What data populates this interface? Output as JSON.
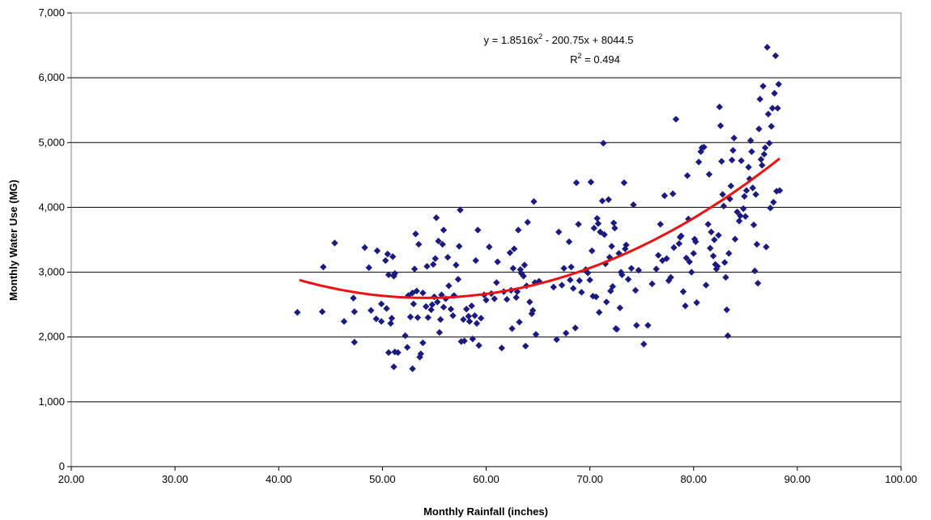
{
  "chart_data": {
    "type": "scatter",
    "title": "",
    "xlabel": "Monthly Rainfall (inches)",
    "ylabel": "Monthly Water Use (MG)",
    "xlim": [
      20,
      100
    ],
    "ylim": [
      0,
      7000
    ],
    "xticks": [
      20,
      30,
      40,
      50,
      60,
      70,
      80,
      90,
      100
    ],
    "xtick_labels": [
      "20.00",
      "30.00",
      "40.00",
      "50.00",
      "60.00",
      "70.00",
      "80.00",
      "90.00",
      "100.00"
    ],
    "yticks": [
      0,
      1000,
      2000,
      3000,
      4000,
      5000,
      6000,
      7000
    ],
    "ytick_labels": [
      "0",
      "1,000",
      "2,000",
      "3,000",
      "4,000",
      "5,000",
      "6,000",
      "7,000"
    ],
    "grid": {
      "horizontal": true,
      "vertical": false
    },
    "legend": "none",
    "colors": {
      "points": "#1a1a80",
      "trendline": "#ee1111",
      "grid": "#000000"
    },
    "trendline": {
      "type": "polynomial",
      "coefficients": [
        1.8516,
        -200.75,
        8044.5
      ],
      "x_range": [
        42,
        88.3
      ],
      "equation_prefix": "y = 1.8516x",
      "equation_sup": "2",
      "equation_suffix": " - 200.75x + 8044.5",
      "r2_prefix": "R",
      "r2_sup": "2",
      "r2_suffix": " = 0.494"
    },
    "series": [
      {
        "points": [
          [
            41.8,
            2380
          ],
          [
            44.2,
            2390
          ],
          [
            44.3,
            3080
          ],
          [
            45.4,
            3450
          ],
          [
            46.3,
            2240
          ],
          [
            47.3,
            2390
          ],
          [
            47.2,
            2600
          ],
          [
            47.3,
            1920
          ],
          [
            48.3,
            3380
          ],
          [
            48.7,
            3070
          ],
          [
            48.9,
            2410
          ],
          [
            49.4,
            2280
          ],
          [
            49.5,
            3330
          ],
          [
            49.9,
            2510
          ],
          [
            49.9,
            2240
          ],
          [
            50.3,
            3180
          ],
          [
            50.5,
            3280
          ],
          [
            50.6,
            2960
          ],
          [
            50.4,
            2440
          ],
          [
            50.6,
            1760
          ],
          [
            50.8,
            2210
          ],
          [
            50.9,
            2290
          ],
          [
            51.0,
            3240
          ],
          [
            51.1,
            2940
          ],
          [
            51.2,
            2980
          ],
          [
            51.1,
            1540
          ],
          [
            51.2,
            1770
          ],
          [
            51.5,
            1760
          ],
          [
            52.2,
            2020
          ],
          [
            52.4,
            1840
          ],
          [
            52.5,
            2640
          ],
          [
            52.7,
            2310
          ],
          [
            52.9,
            2680
          ],
          [
            52.9,
            1510
          ],
          [
            53.0,
            2510
          ],
          [
            53.1,
            3050
          ],
          [
            53.2,
            3590
          ],
          [
            53.3,
            2710
          ],
          [
            53.4,
            2300
          ],
          [
            53.5,
            3430
          ],
          [
            53.6,
            1690
          ],
          [
            53.7,
            1740
          ],
          [
            53.9,
            2680
          ],
          [
            53.9,
            1910
          ],
          [
            54.2,
            2470
          ],
          [
            54.3,
            3090
          ],
          [
            54.4,
            2300
          ],
          [
            54.7,
            2420
          ],
          [
            54.8,
            2500
          ],
          [
            54.9,
            3120
          ],
          [
            55.0,
            2620
          ],
          [
            55.1,
            3210
          ],
          [
            55.2,
            3840
          ],
          [
            55.3,
            2540
          ],
          [
            55.4,
            3480
          ],
          [
            55.5,
            2070
          ],
          [
            55.6,
            2270
          ],
          [
            55.7,
            2650
          ],
          [
            55.8,
            3430
          ],
          [
            55.9,
            2460
          ],
          [
            55.9,
            3650
          ],
          [
            56.1,
            2590
          ],
          [
            56.3,
            3230
          ],
          [
            56.4,
            2790
          ],
          [
            56.6,
            2430
          ],
          [
            56.8,
            2330
          ],
          [
            56.9,
            2640
          ],
          [
            57.1,
            3110
          ],
          [
            57.3,
            2890
          ],
          [
            57.4,
            3400
          ],
          [
            57.5,
            3960
          ],
          [
            57.6,
            1930
          ],
          [
            57.8,
            2270
          ],
          [
            57.9,
            1940
          ],
          [
            58.1,
            2430
          ],
          [
            58.3,
            2320
          ],
          [
            58.4,
            2240
          ],
          [
            58.6,
            2480
          ],
          [
            58.7,
            1970
          ],
          [
            58.9,
            2330
          ],
          [
            59.0,
            3180
          ],
          [
            59.1,
            2210
          ],
          [
            59.2,
            3650
          ],
          [
            59.3,
            1870
          ],
          [
            59.5,
            2290
          ],
          [
            59.8,
            2650
          ],
          [
            60.0,
            2570
          ],
          [
            60.3,
            3390
          ],
          [
            60.5,
            2670
          ],
          [
            60.8,
            2590
          ],
          [
            61.0,
            2840
          ],
          [
            61.1,
            3160
          ],
          [
            61.5,
            1830
          ],
          [
            61.7,
            2700
          ],
          [
            62.0,
            2580
          ],
          [
            62.3,
            3300
          ],
          [
            62.4,
            2720
          ],
          [
            62.5,
            2130
          ],
          [
            62.6,
            3060
          ],
          [
            62.7,
            3360
          ],
          [
            62.9,
            2610
          ],
          [
            63.0,
            2700
          ],
          [
            63.1,
            3650
          ],
          [
            63.2,
            2230
          ],
          [
            63.3,
            3040
          ],
          [
            63.4,
            2980
          ],
          [
            63.6,
            2940
          ],
          [
            63.7,
            3110
          ],
          [
            63.8,
            1860
          ],
          [
            63.9,
            2790
          ],
          [
            64.0,
            3770
          ],
          [
            64.2,
            2540
          ],
          [
            64.4,
            2360
          ],
          [
            64.5,
            2410
          ],
          [
            64.6,
            4090
          ],
          [
            64.7,
            2840
          ],
          [
            64.8,
            2040
          ],
          [
            65.1,
            2860
          ],
          [
            66.5,
            2770
          ],
          [
            66.8,
            1960
          ],
          [
            67.0,
            3620
          ],
          [
            67.3,
            2800
          ],
          [
            67.5,
            3060
          ],
          [
            67.7,
            2060
          ],
          [
            68.0,
            3470
          ],
          [
            68.1,
            2880
          ],
          [
            68.2,
            3080
          ],
          [
            68.4,
            2750
          ],
          [
            68.6,
            2140
          ],
          [
            68.7,
            4380
          ],
          [
            68.9,
            3740
          ],
          [
            69.0,
            2870
          ],
          [
            69.2,
            2690
          ],
          [
            69.6,
            3040
          ],
          [
            69.8,
            2990
          ],
          [
            70.0,
            2880
          ],
          [
            70.1,
            4390
          ],
          [
            70.2,
            3330
          ],
          [
            70.3,
            2630
          ],
          [
            70.4,
            3680
          ],
          [
            70.6,
            2620
          ],
          [
            70.7,
            3830
          ],
          [
            70.8,
            3750
          ],
          [
            70.9,
            2380
          ],
          [
            71.0,
            3620
          ],
          [
            71.2,
            4100
          ],
          [
            71.3,
            4990
          ],
          [
            71.4,
            3580
          ],
          [
            71.5,
            3130
          ],
          [
            71.6,
            2540
          ],
          [
            71.8,
            4120
          ],
          [
            71.9,
            3230
          ],
          [
            72.0,
            2710
          ],
          [
            72.1,
            3400
          ],
          [
            72.2,
            2780
          ],
          [
            72.3,
            3760
          ],
          [
            72.4,
            3680
          ],
          [
            72.5,
            2130
          ],
          [
            72.6,
            2120
          ],
          [
            72.8,
            3290
          ],
          [
            72.9,
            2450
          ],
          [
            73.0,
            3000
          ],
          [
            73.1,
            2960
          ],
          [
            73.3,
            4380
          ],
          [
            73.4,
            3360
          ],
          [
            73.5,
            3420
          ],
          [
            73.7,
            2890
          ],
          [
            74.0,
            3060
          ],
          [
            74.2,
            4040
          ],
          [
            74.4,
            2720
          ],
          [
            74.5,
            2180
          ],
          [
            74.7,
            3030
          ],
          [
            75.2,
            1890
          ],
          [
            75.6,
            2180
          ],
          [
            76.0,
            2820
          ],
          [
            76.4,
            3050
          ],
          [
            76.6,
            3260
          ],
          [
            76.8,
            3740
          ],
          [
            77.0,
            3180
          ],
          [
            77.2,
            4180
          ],
          [
            77.4,
            3210
          ],
          [
            77.6,
            2870
          ],
          [
            77.8,
            2920
          ],
          [
            78.0,
            4210
          ],
          [
            78.1,
            3380
          ],
          [
            78.3,
            5360
          ],
          [
            78.6,
            3440
          ],
          [
            78.7,
            3540
          ],
          [
            78.8,
            3560
          ],
          [
            79.0,
            2700
          ],
          [
            79.2,
            2480
          ],
          [
            79.3,
            3220
          ],
          [
            79.4,
            4490
          ],
          [
            79.5,
            3820
          ],
          [
            79.6,
            3160
          ],
          [
            79.8,
            3000
          ],
          [
            80.0,
            3290
          ],
          [
            80.1,
            3510
          ],
          [
            80.2,
            3470
          ],
          [
            80.3,
            2530
          ],
          [
            80.5,
            4700
          ],
          [
            80.7,
            4860
          ],
          [
            80.8,
            4920
          ],
          [
            81.0,
            4930
          ],
          [
            81.2,
            2800
          ],
          [
            81.4,
            3740
          ],
          [
            81.5,
            4510
          ],
          [
            81.6,
            3370
          ],
          [
            81.7,
            3620
          ],
          [
            81.9,
            3250
          ],
          [
            82.0,
            3500
          ],
          [
            82.1,
            3120
          ],
          [
            82.2,
            3050
          ],
          [
            82.3,
            3090
          ],
          [
            82.4,
            3570
          ],
          [
            82.5,
            5550
          ],
          [
            82.6,
            5260
          ],
          [
            82.7,
            4710
          ],
          [
            82.8,
            4200
          ],
          [
            82.9,
            4020
          ],
          [
            83.0,
            3150
          ],
          [
            83.1,
            2920
          ],
          [
            83.2,
            2420
          ],
          [
            83.3,
            2020
          ],
          [
            83.4,
            3290
          ],
          [
            83.5,
            4130
          ],
          [
            83.6,
            4330
          ],
          [
            83.7,
            4730
          ],
          [
            83.8,
            4880
          ],
          [
            83.9,
            5070
          ],
          [
            84.0,
            3510
          ],
          [
            84.2,
            3930
          ],
          [
            84.4,
            3790
          ],
          [
            84.5,
            3870
          ],
          [
            84.6,
            4720
          ],
          [
            84.8,
            3980
          ],
          [
            84.9,
            4170
          ],
          [
            85.0,
            3860
          ],
          [
            85.1,
            4260
          ],
          [
            85.3,
            4620
          ],
          [
            85.4,
            4440
          ],
          [
            85.5,
            5030
          ],
          [
            85.6,
            4860
          ],
          [
            85.7,
            4300
          ],
          [
            85.8,
            3730
          ],
          [
            85.9,
            3020
          ],
          [
            86.0,
            4200
          ],
          [
            86.1,
            3430
          ],
          [
            86.2,
            2830
          ],
          [
            86.3,
            5210
          ],
          [
            86.4,
            5670
          ],
          [
            86.5,
            4740
          ],
          [
            86.6,
            4650
          ],
          [
            86.7,
            5870
          ],
          [
            86.8,
            4820
          ],
          [
            86.9,
            4920
          ],
          [
            87.0,
            3390
          ],
          [
            87.1,
            6470
          ],
          [
            87.2,
            5440
          ],
          [
            87.3,
            4990
          ],
          [
            87.4,
            3990
          ],
          [
            87.5,
            5250
          ],
          [
            87.6,
            5530
          ],
          [
            87.7,
            4080
          ],
          [
            87.8,
            5760
          ],
          [
            87.9,
            6340
          ],
          [
            88.0,
            4250
          ],
          [
            88.1,
            5530
          ],
          [
            88.2,
            5900
          ],
          [
            88.3,
            4260
          ]
        ]
      }
    ]
  }
}
